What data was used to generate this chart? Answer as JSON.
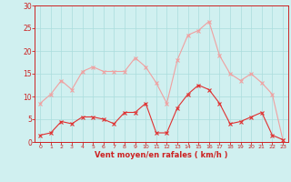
{
  "x": [
    0,
    1,
    2,
    3,
    4,
    5,
    6,
    7,
    8,
    9,
    10,
    11,
    12,
    13,
    14,
    15,
    16,
    17,
    18,
    19,
    20,
    21,
    22,
    23
  ],
  "wind_avg": [
    1.5,
    2,
    4.5,
    4,
    5.5,
    5.5,
    5,
    4,
    6.5,
    6.5,
    8.5,
    2,
    2,
    7.5,
    10.5,
    12.5,
    11.5,
    8.5,
    4,
    4.5,
    5.5,
    6.5,
    1.5,
    0.5
  ],
  "wind_gust": [
    8.5,
    10.5,
    13.5,
    11.5,
    15.5,
    16.5,
    15.5,
    15.5,
    15.5,
    18.5,
    16.5,
    13,
    8.5,
    18,
    23.5,
    24.5,
    26.5,
    19,
    15,
    13.5,
    15,
    13,
    10.5,
    0.5
  ],
  "line_color_avg": "#e03030",
  "line_color_gust": "#f0a0a0",
  "bg_color": "#d0f0f0",
  "grid_color": "#aadddd",
  "axis_color": "#cc2222",
  "xlabel": "Vent moyen/en rafales ( km/h )",
  "ylim": [
    0,
    30
  ],
  "yticks": [
    0,
    5,
    10,
    15,
    20,
    25,
    30
  ],
  "xticks": [
    0,
    1,
    2,
    3,
    4,
    5,
    6,
    7,
    8,
    9,
    10,
    11,
    12,
    13,
    14,
    15,
    16,
    17,
    18,
    19,
    20,
    21,
    22,
    23
  ]
}
